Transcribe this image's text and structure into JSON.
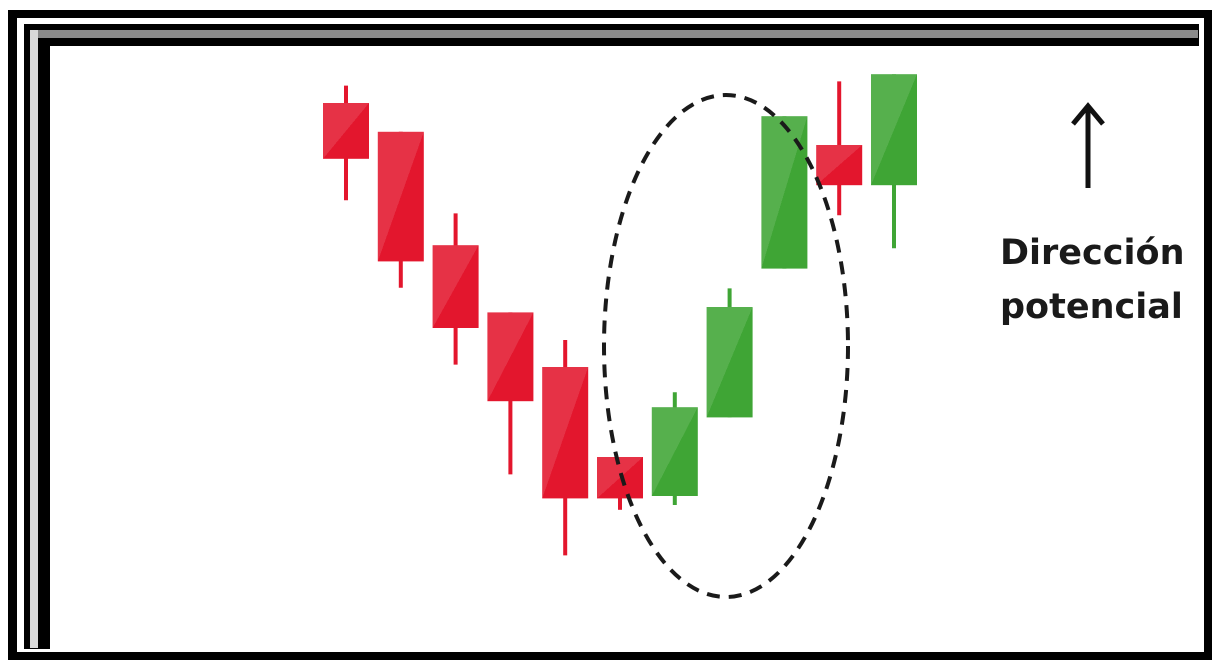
{
  "chart_data": {
    "type": "candlestick",
    "title": "",
    "xlabel": "",
    "ylabel": "",
    "ylim": [
      0,
      100
    ],
    "grid": false,
    "candles": [
      {
        "open": 90.5,
        "close": 81.2,
        "high": 93.4,
        "low": 74.3,
        "direction": "down"
      },
      {
        "open": 85.7,
        "close": 64.1,
        "high": 85.7,
        "low": 59.7,
        "direction": "down"
      },
      {
        "open": 66.8,
        "close": 53.0,
        "high": 72.1,
        "low": 46.9,
        "direction": "down"
      },
      {
        "open": 55.6,
        "close": 40.8,
        "high": 55.6,
        "low": 28.6,
        "direction": "down"
      },
      {
        "open": 46.5,
        "close": 24.6,
        "high": 51.0,
        "low": 15.1,
        "direction": "down"
      },
      {
        "open": 31.5,
        "close": 24.6,
        "high": 31.5,
        "low": 22.7,
        "direction": "down"
      },
      {
        "open": 25.0,
        "close": 39.8,
        "high": 42.3,
        "low": 23.5,
        "direction": "up"
      },
      {
        "open": 38.1,
        "close": 56.5,
        "high": 59.6,
        "low": 38.1,
        "direction": "up"
      },
      {
        "open": 62.9,
        "close": 88.3,
        "high": 88.3,
        "low": 62.9,
        "direction": "up"
      },
      {
        "open": 83.5,
        "close": 76.8,
        "high": 94.1,
        "low": 71.8,
        "direction": "down"
      },
      {
        "open": 76.8,
        "close": 95.3,
        "high": 95.3,
        "low": 66.3,
        "direction": "up"
      }
    ],
    "highlight": {
      "shape": "dashed-ellipse",
      "covers_candles": [
        6,
        7,
        8
      ]
    }
  },
  "annotation": {
    "label_line1": "Dirección",
    "label_line2": "potencial",
    "icon": "arrow-up-icon"
  },
  "colors": {
    "bearish": "#e3162d",
    "bullish": "#3fa535",
    "outline": "#1a1a1a"
  }
}
